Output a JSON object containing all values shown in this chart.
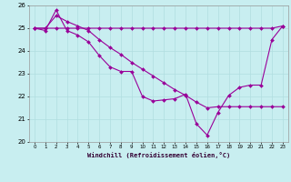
{
  "xlabel": "Windchill (Refroidissement éolien,°C)",
  "xlim": [
    -0.5,
    23.5
  ],
  "ylim": [
    20,
    26
  ],
  "xticks": [
    0,
    1,
    2,
    3,
    4,
    5,
    6,
    7,
    8,
    9,
    10,
    11,
    12,
    13,
    14,
    15,
    16,
    17,
    18,
    19,
    20,
    21,
    22,
    23
  ],
  "yticks": [
    20,
    21,
    22,
    23,
    24,
    25,
    26
  ],
  "bg_color": "#c8eef0",
  "line_color": "#990099",
  "grid_color": "#b0dde0",
  "line1_y": [
    25.0,
    24.9,
    25.8,
    24.9,
    24.7,
    24.4,
    23.8,
    23.3,
    23.1,
    23.1,
    22.0,
    21.8,
    21.85,
    21.9,
    22.1,
    20.8,
    20.3,
    21.3,
    22.05,
    22.4,
    22.5,
    22.5,
    24.5,
    25.1
  ],
  "line2_y": [
    25.0,
    25.0,
    25.55,
    25.3,
    25.1,
    24.9,
    24.5,
    24.15,
    23.85,
    23.5,
    23.2,
    22.9,
    22.6,
    22.3,
    22.05,
    21.75,
    21.5,
    21.55,
    21.55,
    21.55,
    21.55,
    21.55,
    21.55,
    21.55
  ],
  "line3_y": [
    25.0,
    25.0,
    25.0,
    25.0,
    25.0,
    25.0,
    25.0,
    25.0,
    25.0,
    25.0,
    25.0,
    25.0,
    25.0,
    25.0,
    25.0,
    25.0,
    25.0,
    25.0,
    25.0,
    25.0,
    25.0,
    25.0,
    25.0,
    25.1
  ],
  "figsize": [
    3.2,
    2.0
  ],
  "dpi": 100
}
